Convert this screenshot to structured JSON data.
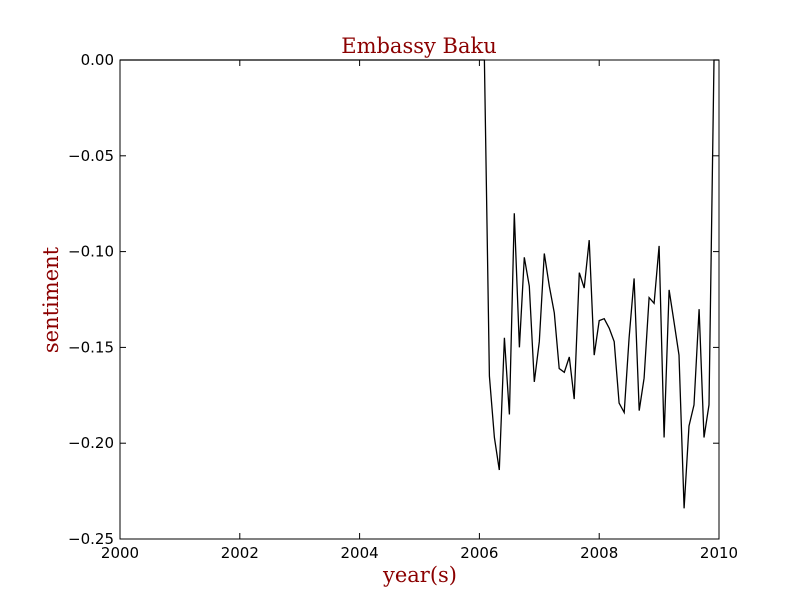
{
  "colors": {
    "title": "#8b0000",
    "axis_label": "#8b0000",
    "line": "#000000",
    "axes": "#000000",
    "background": "#ffffff"
  },
  "chart_data": {
    "type": "line",
    "title": "Embassy Baku",
    "xlabel": "year(s)",
    "ylabel": "sentiment",
    "xlim": [
      2000,
      2010
    ],
    "ylim": [
      -0.25,
      0.0
    ],
    "grid": false,
    "x_ticks": [
      2000,
      2002,
      2004,
      2006,
      2008,
      2010
    ],
    "y_ticks": [
      0.0,
      -0.05,
      -0.1,
      -0.15,
      -0.2,
      -0.25
    ],
    "x_tick_labels": [
      "2000",
      "2002",
      "2004",
      "2006",
      "2008",
      "2010"
    ],
    "y_tick_labels": [
      "0.00",
      "−0.05",
      "−0.10",
      "−0.15",
      "−0.20",
      "−0.25"
    ],
    "series": [
      {
        "x": [
          2000.0,
          2000.083,
          2000.167,
          2000.25,
          2000.333,
          2000.417,
          2000.5,
          2000.583,
          2000.667,
          2000.75,
          2000.833,
          2000.917,
          2001.0,
          2001.083,
          2001.167,
          2001.25,
          2001.333,
          2001.417,
          2001.5,
          2001.583,
          2001.667,
          2001.75,
          2001.833,
          2001.917,
          2002.0,
          2002.083,
          2002.167,
          2002.25,
          2002.333,
          2002.417,
          2002.5,
          2002.583,
          2002.667,
          2002.75,
          2002.833,
          2002.917,
          2003.0,
          2003.083,
          2003.167,
          2003.25,
          2003.333,
          2003.417,
          2003.5,
          2003.583,
          2003.667,
          2003.75,
          2003.833,
          2003.917,
          2004.0,
          2004.083,
          2004.167,
          2004.25,
          2004.333,
          2004.417,
          2004.5,
          2004.583,
          2004.667,
          2004.75,
          2004.833,
          2004.917,
          2005.0,
          2005.083,
          2005.167,
          2005.25,
          2005.333,
          2005.417,
          2005.5,
          2005.583,
          2005.667,
          2005.75,
          2005.833,
          2005.917,
          2006.0,
          2006.083,
          2006.167,
          2006.25,
          2006.333,
          2006.417,
          2006.5,
          2006.583,
          2006.667,
          2006.75,
          2006.833,
          2006.917,
          2007.0,
          2007.083,
          2007.167,
          2007.25,
          2007.333,
          2007.417,
          2007.5,
          2007.583,
          2007.667,
          2007.75,
          2007.833,
          2007.917,
          2008.0,
          2008.083,
          2008.167,
          2008.25,
          2008.333,
          2008.417,
          2008.5,
          2008.583,
          2008.667,
          2008.75,
          2008.833,
          2008.917,
          2009.0,
          2009.083,
          2009.167,
          2009.25,
          2009.333,
          2009.417,
          2009.5,
          2009.583,
          2009.667,
          2009.75,
          2009.833,
          2009.917,
          2010.0
        ],
        "y": [
          0,
          0,
          0,
          0,
          0,
          0,
          0,
          0,
          0,
          0,
          0,
          0,
          0,
          0,
          0,
          0,
          0,
          0,
          0,
          0,
          0,
          0,
          0,
          0,
          0,
          0,
          0,
          0,
          0,
          0,
          0,
          0,
          0,
          0,
          0,
          0,
          0,
          0,
          0,
          0,
          0,
          0,
          0,
          0,
          0,
          0,
          0,
          0,
          0,
          0,
          0,
          0,
          0,
          0,
          0,
          0,
          0,
          0,
          0,
          0,
          0,
          0,
          0,
          0,
          0,
          0,
          0,
          0,
          0,
          0,
          0,
          0,
          0,
          0,
          -0.165,
          -0.197,
          -0.214,
          -0.145,
          -0.185,
          -0.08,
          -0.15,
          -0.103,
          -0.118,
          -0.168,
          -0.147,
          -0.101,
          -0.118,
          -0.132,
          -0.161,
          -0.163,
          -0.155,
          -0.177,
          -0.111,
          -0.119,
          -0.094,
          -0.154,
          -0.136,
          -0.135,
          -0.14,
          -0.147,
          -0.179,
          -0.184,
          -0.145,
          -0.114,
          -0.183,
          -0.166,
          -0.124,
          -0.127,
          -0.097,
          -0.197,
          -0.12,
          -0.137,
          -0.154,
          -0.234,
          -0.191,
          -0.18,
          -0.13,
          -0.197,
          -0.18,
          0,
          0
        ]
      }
    ]
  }
}
